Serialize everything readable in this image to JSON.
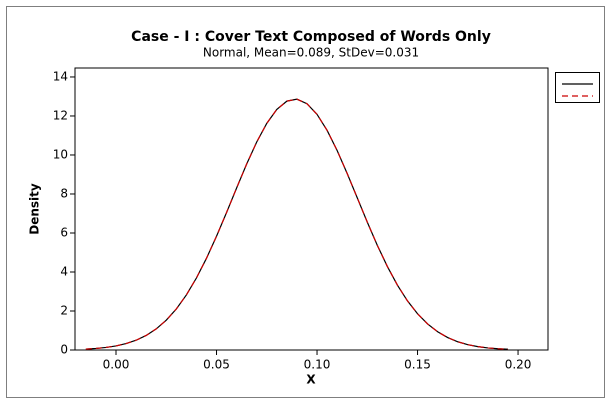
{
  "chart_data": {
    "type": "line",
    "title": "Case - I : Cover Text Composed of Words Only",
    "subtitle": "Normal, Mean=0.089, StDev=0.031",
    "x_label": "X",
    "y_label": "Density",
    "x": [
      -0.015,
      -0.01,
      -0.005,
      0,
      0.005,
      0.01,
      0.015,
      0.02,
      0.025,
      0.03,
      0.035,
      0.04,
      0.045,
      0.05,
      0.055,
      0.06,
      0.065,
      0.07,
      0.075,
      0.08,
      0.085,
      0.09,
      0.095,
      0.1,
      0.105,
      0.11,
      0.115,
      0.12,
      0.125,
      0.13,
      0.135,
      0.14,
      0.145,
      0.15,
      0.155,
      0.16,
      0.165,
      0.17,
      0.175,
      0.18,
      0.185,
      0.19,
      0.195
    ],
    "series": [
      {
        "color": "#000000",
        "dashed": false,
        "values": [
          0.046,
          0.079,
          0.13,
          0.209,
          0.328,
          0.5,
          0.746,
          1.081,
          1.528,
          2.104,
          2.824,
          3.691,
          4.701,
          5.834,
          7.052,
          8.308,
          9.536,
          10.666,
          11.621,
          12.337,
          12.762,
          12.862,
          12.63,
          12.084,
          11.264,
          10.231,
          9.053,
          7.805,
          6.557,
          5.366,
          4.279,
          3.325,
          2.517,
          1.857,
          1.335,
          0.935,
          0.637,
          0.423,
          0.274,
          0.173,
          0.106,
          0.064,
          0.037
        ]
      },
      {
        "color": "#cc0000",
        "dashed": true,
        "values": [
          0.046,
          0.079,
          0.13,
          0.209,
          0.328,
          0.5,
          0.746,
          1.081,
          1.528,
          2.104,
          2.824,
          3.691,
          4.701,
          5.834,
          7.052,
          8.308,
          9.536,
          10.666,
          11.621,
          12.337,
          12.762,
          12.862,
          12.63,
          12.084,
          11.264,
          10.231,
          9.053,
          7.805,
          6.557,
          5.366,
          4.279,
          3.325,
          2.517,
          1.857,
          1.335,
          0.935,
          0.637,
          0.423,
          0.274,
          0.173,
          0.106,
          0.064,
          0.037
        ]
      }
    ],
    "xlim": [
      -0.0204,
      0.2149
    ],
    "xticks": [
      {
        "value": 0,
        "label": "0.00"
      },
      {
        "value": 0.05,
        "label": "0.05"
      },
      {
        "value": 0.1,
        "label": "0.10"
      },
      {
        "value": 0.15,
        "label": "0.15"
      },
      {
        "value": 0.2,
        "label": "0.20"
      }
    ],
    "ylim": [
      0,
      14.46
    ],
    "yticks": [
      0,
      2,
      4,
      6,
      8,
      10,
      12,
      14
    ],
    "grid": false,
    "legend": "right"
  }
}
